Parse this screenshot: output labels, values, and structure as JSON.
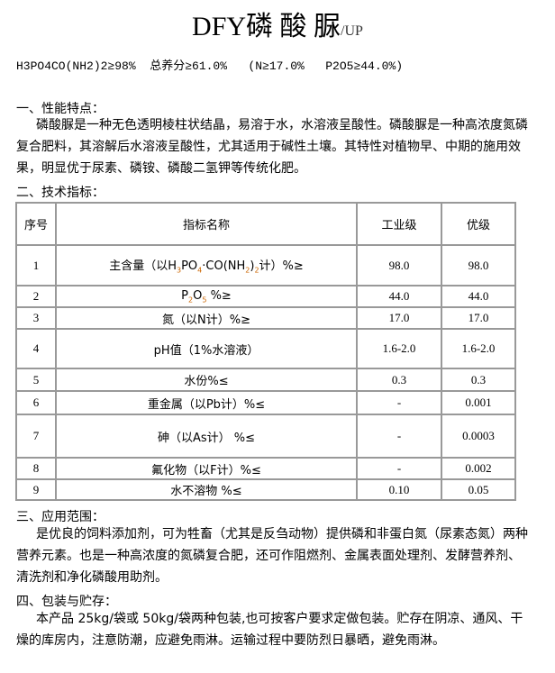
{
  "title": {
    "main": "DFY磷 酸 脲",
    "suffix": "/UP"
  },
  "formula_line": "H3PO4CO(NH2)2≥98%  总养分≥61.0%   (N≥17.0%   P2O5≥44.0%)",
  "sections": [
    {
      "heading": "一、性能特点：",
      "body": "磷酸脲是一种无色透明棱柱状结晶，易溶于水，水溶液呈酸性。磷酸脲是一种高浓度氮磷复合肥料，其溶解后水溶液呈酸性，尤其适用于碱性土壤。其特性对植物早、中期的施用效果，明显优于尿素、磷铵、磷酸二氢钾等传统化肥。"
    },
    {
      "heading": "二、技术指标："
    },
    {
      "heading": "三、应用范围：",
      "body": "是优良的饲料添加剂，可为牲畜（尤其是反刍动物）提供磷和非蛋白氮（尿素态氮）两种营养元素。也是一种高浓度的氮磷复合肥，还可作阻燃剂、金属表面处理剂、发酵营养剂、清洗剂和净化磷酸用助剂。"
    },
    {
      "heading": "四、包装与贮存：",
      "body": "本产品 25kg/袋或 50kg/袋两种包装,也可按客户要求定做包装。贮存在阴凉、通风、干燥的库房内，注意防潮，应避免雨淋。运输过程中要防烈日暴晒，避免雨淋。"
    }
  ],
  "table": {
    "headers": [
      "序号",
      "指标名称",
      "工业级",
      "优级"
    ],
    "rows": [
      {
        "no": "1",
        "name": [
          {
            "t": "主含量（以H"
          },
          {
            "t": "3",
            "sub": true
          },
          {
            "t": "PO"
          },
          {
            "t": "4",
            "sub": true
          },
          {
            "t": "·CO(NH"
          },
          {
            "t": "2",
            "sub": true
          },
          {
            "t": ")"
          },
          {
            "t": "2",
            "sub": true
          },
          {
            "t": "计）%≥"
          }
        ],
        "industrial": "98.0",
        "premium": "98.0"
      },
      {
        "no": "2",
        "name": [
          {
            "t": "P"
          },
          {
            "t": "2",
            "sub": true
          },
          {
            "t": "O"
          },
          {
            "t": "5",
            "sub": true
          },
          {
            "t": "  %≥"
          }
        ],
        "industrial": "44.0",
        "premium": "44.0"
      },
      {
        "no": "3",
        "name": [
          {
            "t": "氮（以N计）%≥"
          }
        ],
        "industrial": "17.0",
        "premium": "17.0"
      },
      {
        "no": "4",
        "name": [
          {
            "t": "pH值（1%水溶液）"
          }
        ],
        "industrial": "1.6-2.0",
        "premium": "1.6-2.0"
      },
      {
        "no": "5",
        "name": [
          {
            "t": "水份%≤"
          }
        ],
        "industrial": "0.3",
        "premium": "0.3"
      },
      {
        "no": "6",
        "name": [
          {
            "t": "重金属（以Pb计）%≤"
          }
        ],
        "industrial": "-",
        "premium": "0.001"
      },
      {
        "no": "7",
        "name": [
          {
            "t": "砷（以As计）  %≤"
          }
        ],
        "industrial": "-",
        "premium": "0.0003"
      },
      {
        "no": "8",
        "name": [
          {
            "t": "氟化物（以F计）%≤"
          }
        ],
        "industrial": "-",
        "premium": "0.002"
      },
      {
        "no": "9",
        "name": [
          {
            "t": "水不溶物  %≤"
          }
        ],
        "industrial": "0.10",
        "premium": "0.05"
      }
    ]
  }
}
